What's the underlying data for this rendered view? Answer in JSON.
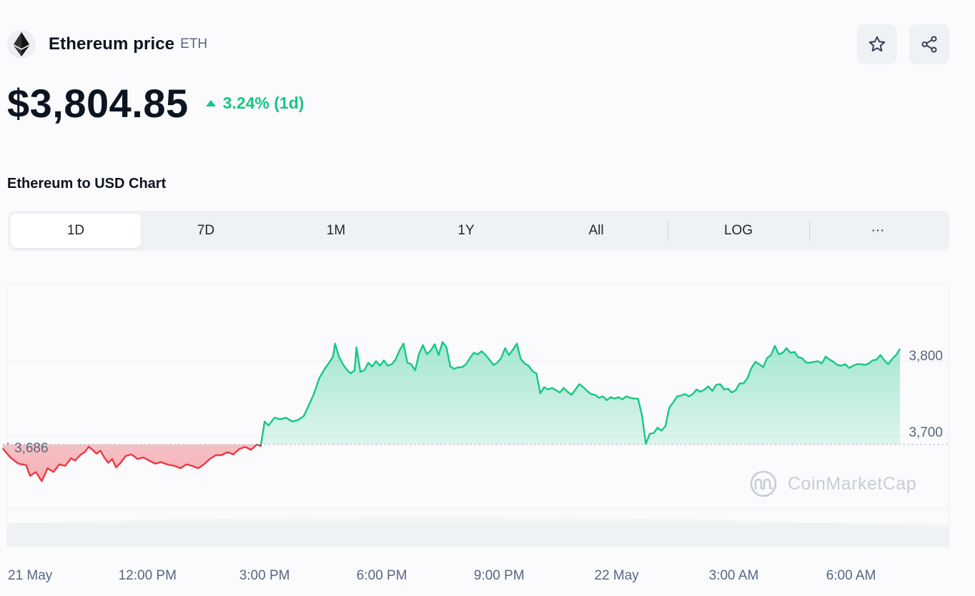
{
  "coin": {
    "name": "Ethereum price",
    "symbol": "ETH",
    "logo_icon": "ethereum-icon"
  },
  "actions": {
    "star_icon": "star-icon",
    "share_icon": "share-icon"
  },
  "price": {
    "value": "$3,804.85",
    "change": "3.24% (1d)",
    "direction": "up",
    "up_color": "#16c784",
    "down_color": "#ea3943"
  },
  "chart_heading": "Ethereum to USD Chart",
  "tabs": [
    {
      "label": "1D",
      "active": true
    },
    {
      "label": "7D",
      "active": false
    },
    {
      "label": "1M",
      "active": false
    },
    {
      "label": "1Y",
      "active": false
    },
    {
      "label": "All",
      "active": false
    },
    {
      "label": "LOG",
      "active": false
    },
    {
      "label": "···",
      "active": false
    }
  ],
  "watermark": "CoinMarketCap",
  "chart_data": {
    "type": "area",
    "title": "",
    "xlabel": "",
    "ylabel": "",
    "baseline": 3686,
    "baseline_label": "3,686",
    "ylim": [
      3620,
      3850
    ],
    "y_ticks": [
      {
        "value": 3800,
        "label": "3,800"
      },
      {
        "value": 3700,
        "label": "3,700"
      }
    ],
    "x_ticks": [
      "21 May",
      "12:00 PM",
      "3:00 PM",
      "6:00 PM",
      "9:00 PM",
      "22 May",
      "3:00 AM",
      "6:00 AM"
    ],
    "x_tick_hours": [
      0,
      3,
      6,
      9,
      12,
      15,
      18,
      21
    ],
    "grid": true,
    "series": [
      {
        "points": [
          [
            -0.7,
            3681
          ],
          [
            -0.5,
            3669
          ],
          [
            -0.3,
            3661
          ],
          [
            -0.1,
            3659
          ],
          [
            0.0,
            3645
          ],
          [
            0.15,
            3650
          ],
          [
            0.3,
            3638
          ],
          [
            0.45,
            3655
          ],
          [
            0.6,
            3650
          ],
          [
            0.75,
            3660
          ],
          [
            0.9,
            3658
          ],
          [
            1.05,
            3668
          ],
          [
            1.15,
            3665
          ],
          [
            1.3,
            3673
          ],
          [
            1.4,
            3676
          ],
          [
            1.5,
            3683
          ],
          [
            1.6,
            3679
          ],
          [
            1.7,
            3674
          ],
          [
            1.8,
            3678
          ],
          [
            1.9,
            3669
          ],
          [
            2.0,
            3662
          ],
          [
            2.1,
            3667
          ],
          [
            2.2,
            3656
          ],
          [
            2.3,
            3661
          ],
          [
            2.45,
            3671
          ],
          [
            2.6,
            3673
          ],
          [
            2.75,
            3667
          ],
          [
            2.9,
            3669
          ],
          [
            3.05,
            3665
          ],
          [
            3.2,
            3661
          ],
          [
            3.35,
            3663
          ],
          [
            3.5,
            3660
          ],
          [
            3.7,
            3658
          ],
          [
            3.85,
            3655
          ],
          [
            4.0,
            3660
          ],
          [
            4.15,
            3658
          ],
          [
            4.3,
            3655
          ],
          [
            4.45,
            3660
          ],
          [
            4.6,
            3667
          ],
          [
            4.75,
            3672
          ],
          [
            4.9,
            3672
          ],
          [
            5.05,
            3676
          ],
          [
            5.2,
            3673
          ],
          [
            5.35,
            3680
          ],
          [
            5.5,
            3683
          ],
          [
            5.65,
            3679
          ],
          [
            5.8,
            3686
          ],
          [
            5.9,
            3684
          ],
          [
            6.0,
            3716
          ],
          [
            6.1,
            3711
          ],
          [
            6.25,
            3721
          ],
          [
            6.4,
            3719
          ],
          [
            6.55,
            3721
          ],
          [
            6.7,
            3716
          ],
          [
            6.85,
            3718
          ],
          [
            7.0,
            3723
          ],
          [
            7.1,
            3734
          ],
          [
            7.25,
            3751
          ],
          [
            7.4,
            3773
          ],
          [
            7.55,
            3786
          ],
          [
            7.65,
            3793
          ],
          [
            7.75,
            3801
          ],
          [
            7.8,
            3818
          ],
          [
            7.9,
            3801
          ],
          [
            8.0,
            3791
          ],
          [
            8.1,
            3784
          ],
          [
            8.2,
            3779
          ],
          [
            8.3,
            3783
          ],
          [
            8.35,
            3813
          ],
          [
            8.45,
            3781
          ],
          [
            8.55,
            3783
          ],
          [
            8.65,
            3793
          ],
          [
            8.75,
            3788
          ],
          [
            8.85,
            3795
          ],
          [
            8.95,
            3789
          ],
          [
            9.05,
            3796
          ],
          [
            9.15,
            3789
          ],
          [
            9.25,
            3791
          ],
          [
            9.35,
            3797
          ],
          [
            9.45,
            3809
          ],
          [
            9.55,
            3818
          ],
          [
            9.65,
            3793
          ],
          [
            9.75,
            3791
          ],
          [
            9.85,
            3783
          ],
          [
            9.95,
            3805
          ],
          [
            10.05,
            3816
          ],
          [
            10.15,
            3804
          ],
          [
            10.25,
            3809
          ],
          [
            10.35,
            3817
          ],
          [
            10.45,
            3803
          ],
          [
            10.55,
            3820
          ],
          [
            10.65,
            3813
          ],
          [
            10.75,
            3788
          ],
          [
            10.85,
            3785
          ],
          [
            10.95,
            3787
          ],
          [
            11.05,
            3787
          ],
          [
            11.15,
            3791
          ],
          [
            11.25,
            3799
          ],
          [
            11.35,
            3806
          ],
          [
            11.45,
            3804
          ],
          [
            11.55,
            3808
          ],
          [
            11.65,
            3803
          ],
          [
            11.75,
            3797
          ],
          [
            11.85,
            3790
          ],
          [
            11.95,
            3793
          ],
          [
            12.05,
            3799
          ],
          [
            12.15,
            3812
          ],
          [
            12.25,
            3803
          ],
          [
            12.35,
            3810
          ],
          [
            12.45,
            3818
          ],
          [
            12.55,
            3798
          ],
          [
            12.65,
            3792
          ],
          [
            12.75,
            3789
          ],
          [
            12.85,
            3782
          ],
          [
            12.95,
            3779
          ],
          [
            13.05,
            3753
          ],
          [
            13.15,
            3761
          ],
          [
            13.25,
            3758
          ],
          [
            13.35,
            3760
          ],
          [
            13.45,
            3757
          ],
          [
            13.55,
            3754
          ],
          [
            13.65,
            3760
          ],
          [
            13.75,
            3755
          ],
          [
            13.85,
            3751
          ],
          [
            13.95,
            3758
          ],
          [
            14.05,
            3765
          ],
          [
            14.15,
            3761
          ],
          [
            14.25,
            3756
          ],
          [
            14.35,
            3752
          ],
          [
            14.45,
            3751
          ],
          [
            14.55,
            3747
          ],
          [
            14.65,
            3749
          ],
          [
            14.75,
            3744
          ],
          [
            14.85,
            3748
          ],
          [
            14.95,
            3746
          ],
          [
            15.05,
            3748
          ],
          [
            15.15,
            3745
          ],
          [
            15.25,
            3749
          ],
          [
            15.35,
            3747
          ],
          [
            15.45,
            3746
          ],
          [
            15.55,
            3746
          ],
          [
            15.65,
            3724
          ],
          [
            15.75,
            3687
          ],
          [
            15.85,
            3700
          ],
          [
            15.95,
            3701
          ],
          [
            16.05,
            3708
          ],
          [
            16.15,
            3704
          ],
          [
            16.25,
            3710
          ],
          [
            16.35,
            3734
          ],
          [
            16.45,
            3741
          ],
          [
            16.55,
            3749
          ],
          [
            16.65,
            3750
          ],
          [
            16.75,
            3752
          ],
          [
            16.85,
            3749
          ],
          [
            16.95,
            3752
          ],
          [
            17.05,
            3758
          ],
          [
            17.15,
            3755
          ],
          [
            17.25,
            3758
          ],
          [
            17.35,
            3762
          ],
          [
            17.45,
            3756
          ],
          [
            17.55,
            3764
          ],
          [
            17.65,
            3765
          ],
          [
            17.75,
            3758
          ],
          [
            17.85,
            3759
          ],
          [
            17.95,
            3754
          ],
          [
            18.05,
            3757
          ],
          [
            18.15,
            3766
          ],
          [
            18.25,
            3766
          ],
          [
            18.35,
            3773
          ],
          [
            18.45,
            3786
          ],
          [
            18.55,
            3794
          ],
          [
            18.65,
            3791
          ],
          [
            18.75,
            3787
          ],
          [
            18.85,
            3799
          ],
          [
            18.95,
            3803
          ],
          [
            19.05,
            3815
          ],
          [
            19.15,
            3804
          ],
          [
            19.25,
            3806
          ],
          [
            19.35,
            3812
          ],
          [
            19.45,
            3806
          ],
          [
            19.55,
            3807
          ],
          [
            19.65,
            3800
          ],
          [
            19.75,
            3799
          ],
          [
            19.85,
            3793
          ],
          [
            19.95,
            3793
          ],
          [
            20.05,
            3794
          ],
          [
            20.15,
            3795
          ],
          [
            20.25,
            3792
          ],
          [
            20.35,
            3801
          ],
          [
            20.45,
            3797
          ],
          [
            20.55,
            3794
          ],
          [
            20.65,
            3790
          ],
          [
            20.75,
            3789
          ],
          [
            20.85,
            3791
          ],
          [
            20.95,
            3786
          ],
          [
            21.05,
            3789
          ],
          [
            21.15,
            3791
          ],
          [
            21.25,
            3791
          ],
          [
            21.35,
            3790
          ],
          [
            21.45,
            3792
          ],
          [
            21.55,
            3796
          ],
          [
            21.65,
            3797
          ],
          [
            21.75,
            3803
          ],
          [
            21.85,
            3796
          ],
          [
            21.95,
            3791
          ],
          [
            22.05,
            3798
          ],
          [
            22.15,
            3803
          ],
          [
            22.25,
            3811
          ]
        ]
      }
    ]
  }
}
